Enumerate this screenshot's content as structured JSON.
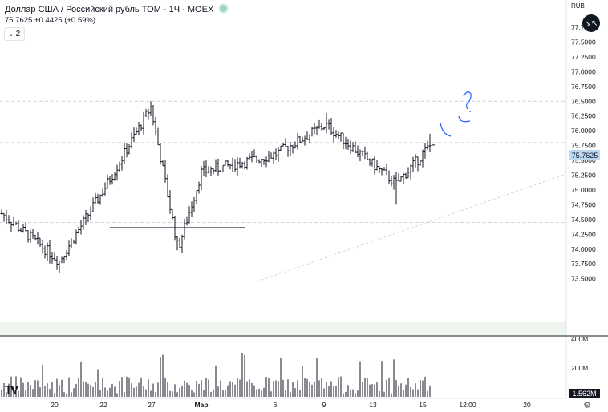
{
  "header": {
    "title": "Доллар США / Российский рубль TOM · 1Ч · MOEX",
    "quote": "75.7625 +0.4425 (+0.59%)",
    "indicators_count": "2",
    "currency": "RUB",
    "fullscreen_icon": "collapse-arrows-icon"
  },
  "colors": {
    "bars": "#131722",
    "volume": "#131722",
    "grid_dashed": "#d1d4dc",
    "annotation": "#2962ff",
    "price_badge": "#bcd8f3",
    "band": "#eef5ec"
  },
  "chart_data": {
    "type": "ohlc",
    "title": "",
    "price_axis": {
      "ticks": [
        "77.7500",
        "77.5000",
        "77.2500",
        "77.0000",
        "76.7500",
        "76.5000",
        "76.2500",
        "76.0000",
        "75.7500",
        "75.5000",
        "75.2500",
        "75.0000",
        "74.7500",
        "74.5000",
        "74.2500",
        "74.0000",
        "73.7500",
        "73.5000"
      ],
      "range": [
        73.45,
        77.85
      ],
      "last_price": "75.7625"
    },
    "volume_axis": {
      "ticks": [
        "400M",
        "200M"
      ],
      "last_volume": "1.562M"
    },
    "time_axis": {
      "ticks": [
        "20",
        "22",
        "27",
        "Мар",
        "6",
        "9",
        "13",
        "15",
        "12:00",
        "20"
      ]
    },
    "horizontal_levels": [
      76.5,
      75.8,
      74.45
    ],
    "support_segment": {
      "from": "22",
      "to": "6",
      "price": 74.37
    },
    "trendline": "dashed rising line from 73.45 toward 75.25",
    "series": [
      {
        "anchor": "start",
        "price": 74.6
      },
      {
        "anchor": "20",
        "price": 73.8,
        "low": 73.6
      },
      {
        "anchor": "22",
        "price": 75.0
      },
      {
        "anchor": "27",
        "price": 76.4,
        "high": 76.5
      },
      {
        "anchor": "27+",
        "price": 74.0,
        "low": 73.98
      },
      {
        "anchor": "Мар",
        "price": 75.3
      },
      {
        "anchor": "6",
        "price": 75.6
      },
      {
        "anchor": "9",
        "price": 76.1,
        "high": 76.3
      },
      {
        "anchor": "13",
        "price": 75.1,
        "low": 74.75
      },
      {
        "anchor": "15",
        "price": 75.76,
        "high": 75.95
      }
    ]
  }
}
